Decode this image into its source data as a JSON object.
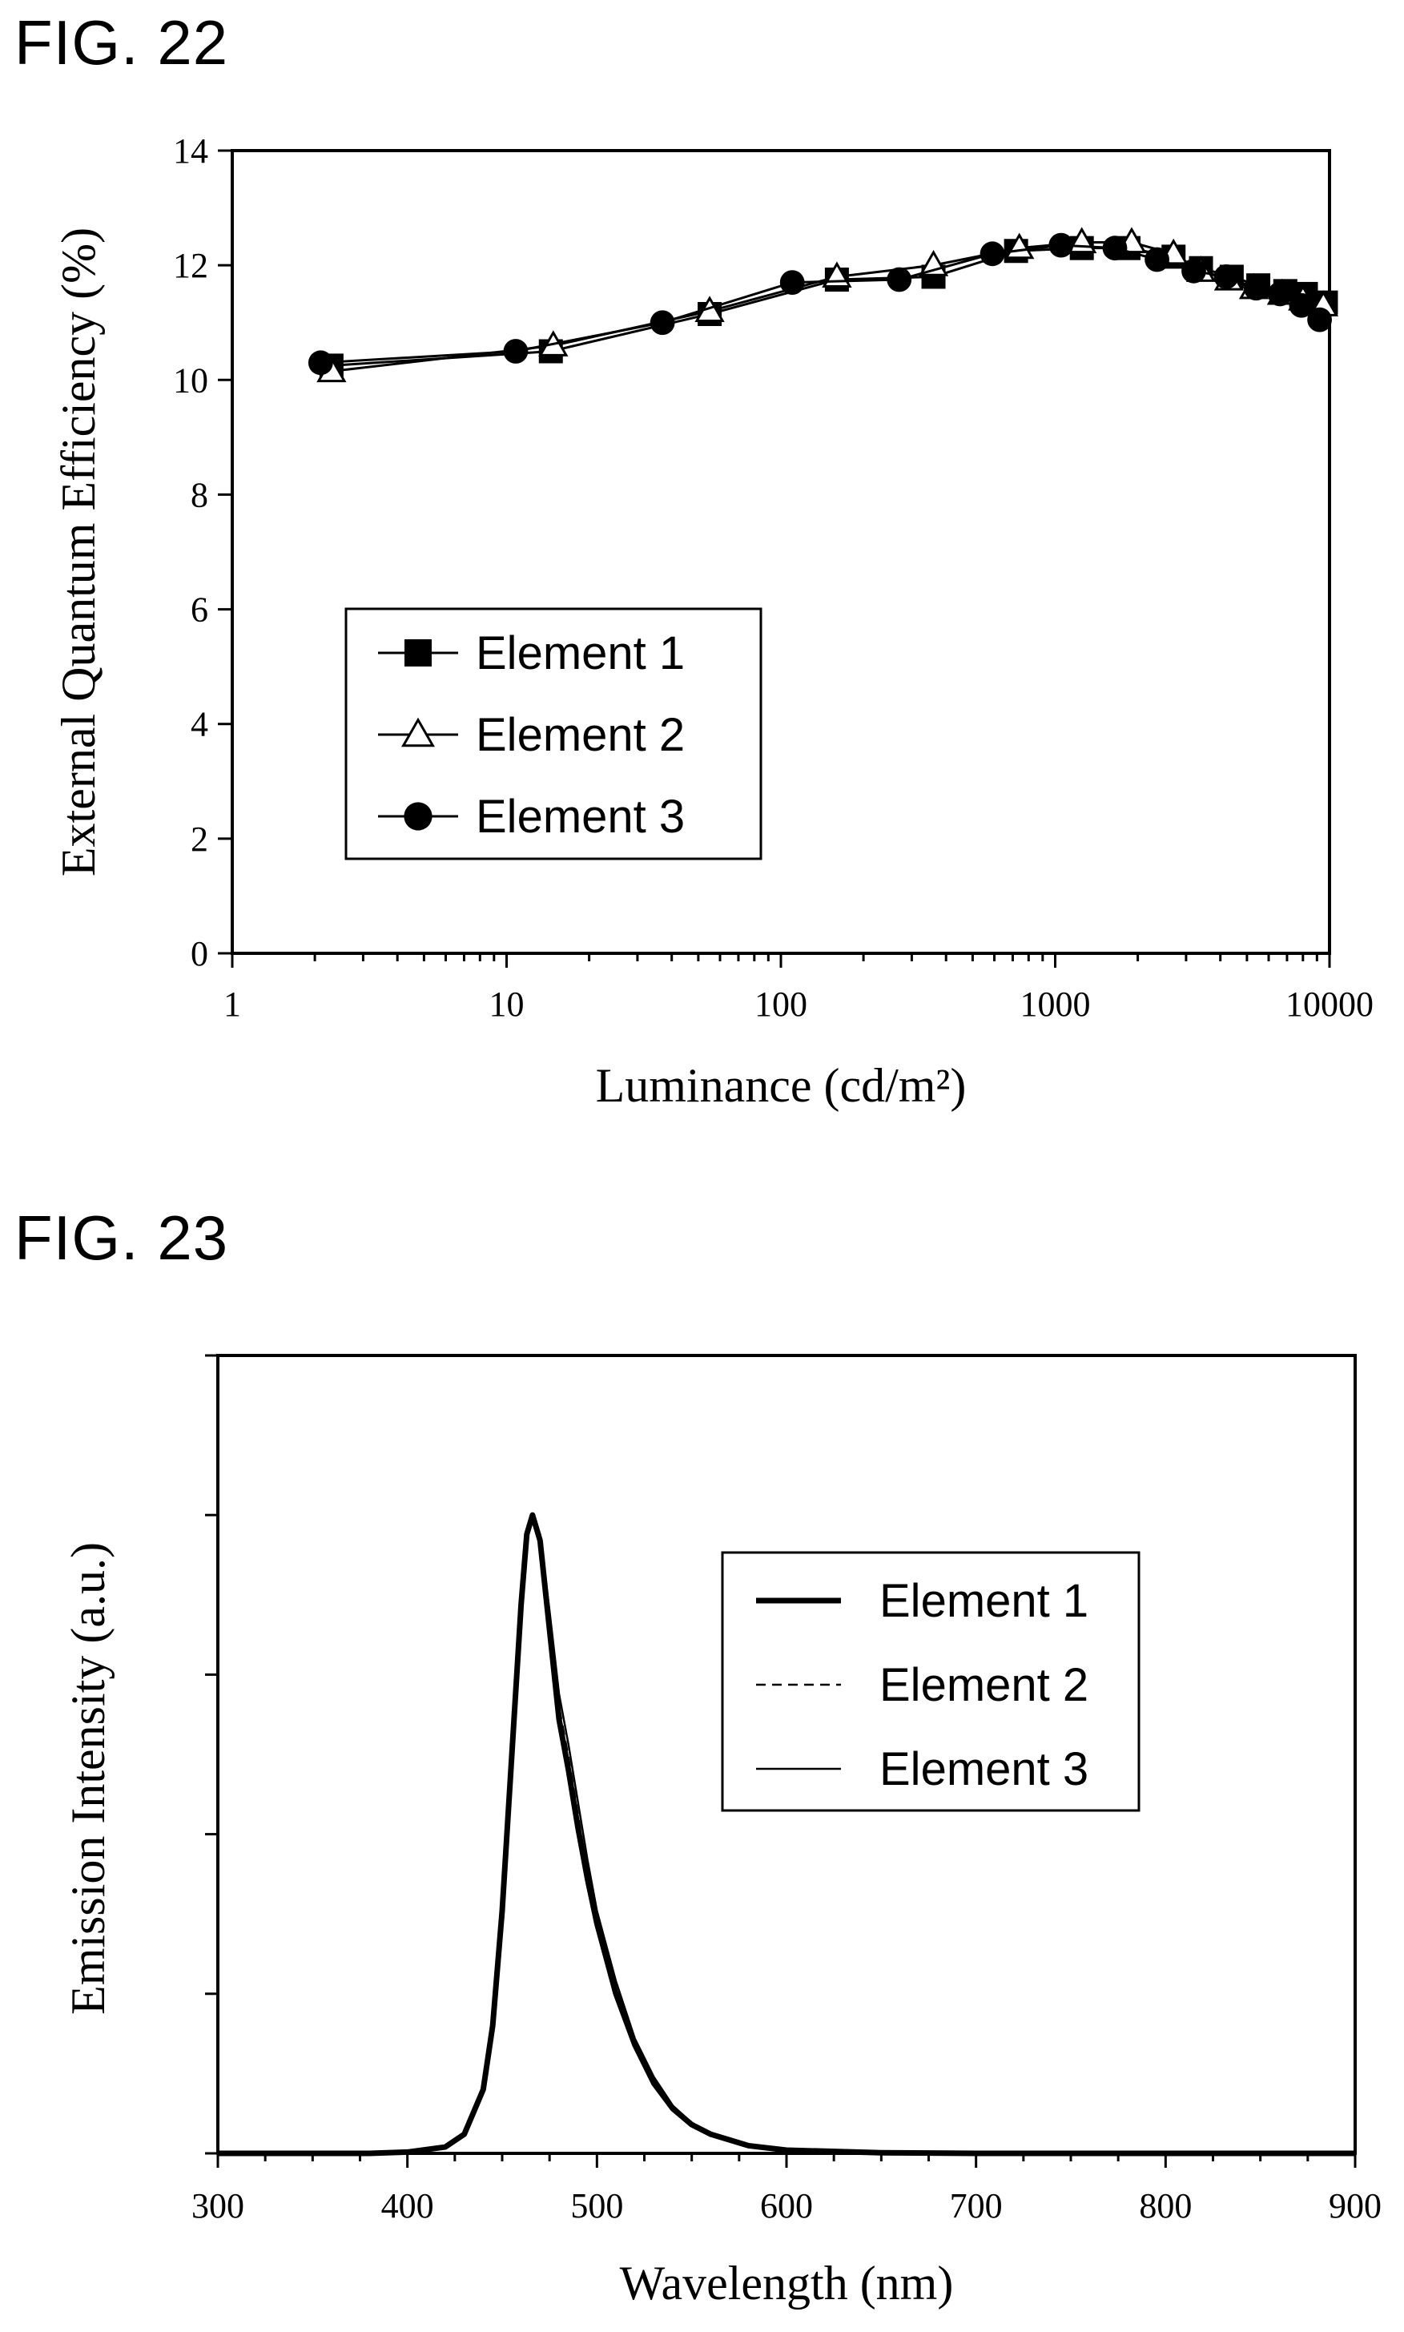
{
  "figures": [
    {
      "label": "FIG. 22"
    },
    {
      "label": "FIG. 23"
    }
  ],
  "chart_data": [
    {
      "type": "scatter",
      "title": "",
      "xlabel": "Luminance (cd/m²)",
      "ylabel": "External Quantum Efficiency (%)",
      "xscale": "log",
      "xlim": [
        1,
        10000
      ],
      "ylim": [
        0,
        14
      ],
      "xticks": [
        1,
        10,
        100,
        1000,
        10000
      ],
      "xtick_labels": [
        "1",
        "10",
        "100",
        "1000",
        "10000"
      ],
      "yticks": [
        0,
        2,
        4,
        6,
        8,
        10,
        12,
        14
      ],
      "ytick_labels": [
        "0",
        "2",
        "4",
        "6",
        "8",
        "10",
        "12",
        "14"
      ],
      "grid": false,
      "legend_position": "lower-left",
      "series": [
        {
          "name": "Element 1",
          "marker": "square-filled",
          "x": [
            2.3,
            14.5,
            55,
            160,
            360,
            720,
            1250,
            1850,
            2700,
            3400,
            4400,
            5500,
            6900,
            8200,
            9700
          ],
          "y": [
            10.25,
            10.5,
            11.15,
            11.75,
            11.8,
            12.25,
            12.3,
            12.3,
            12.15,
            11.95,
            11.8,
            11.65,
            11.55,
            11.5,
            11.35
          ]
        },
        {
          "name": "Element 2",
          "marker": "triangle-open",
          "x": [
            2.3,
            14.8,
            55,
            160,
            360,
            740,
            1250,
            1900,
            2700,
            3400,
            4300,
            5300,
            6700,
            8000,
            9500
          ],
          "y": [
            10.15,
            10.6,
            11.2,
            11.8,
            12.0,
            12.3,
            12.4,
            12.4,
            12.2,
            11.9,
            11.75,
            11.6,
            11.5,
            11.4,
            11.3
          ]
        },
        {
          "name": "Element 3",
          "marker": "circle-filled",
          "x": [
            2.1,
            10.8,
            37,
            110,
            270,
            590,
            1050,
            1650,
            2350,
            3200,
            4200,
            5400,
            6600,
            7900,
            9200
          ],
          "y": [
            10.3,
            10.5,
            11.0,
            11.7,
            11.75,
            12.2,
            12.35,
            12.3,
            12.1,
            11.9,
            11.8,
            11.6,
            11.5,
            11.3,
            11.05
          ]
        }
      ]
    },
    {
      "type": "line",
      "title": "",
      "xlabel": "Wavelength (nm)",
      "ylabel": "Emission Intensity (a.u.)",
      "xlim": [
        300,
        900
      ],
      "ylim": [
        0,
        1.25
      ],
      "xticks": [
        300,
        400,
        500,
        600,
        700,
        800,
        900
      ],
      "xtick_labels": [
        "300",
        "400",
        "500",
        "600",
        "700",
        "800",
        "900"
      ],
      "yticks": [
        0,
        0.25,
        0.5,
        0.75,
        1.0,
        1.25
      ],
      "ytick_labels": [
        "",
        "",
        "",
        "",
        "",
        ""
      ],
      "grid": false,
      "legend_position": "upper-right",
      "x": [
        300,
        380,
        400,
        420,
        430,
        440,
        445,
        450,
        455,
        460,
        463,
        466,
        470,
        475,
        480,
        485,
        490,
        495,
        500,
        510,
        520,
        530,
        540,
        550,
        560,
        580,
        600,
        650,
        700,
        800,
        900
      ],
      "series": [
        {
          "name": "Element 1",
          "style": "thick",
          "values": [
            0,
            0,
            0.002,
            0.01,
            0.03,
            0.1,
            0.2,
            0.38,
            0.62,
            0.86,
            0.97,
            1.0,
            0.96,
            0.82,
            0.68,
            0.6,
            0.51,
            0.43,
            0.36,
            0.25,
            0.17,
            0.11,
            0.07,
            0.045,
            0.03,
            0.012,
            0.005,
            0.001,
            0,
            0,
            0
          ]
        },
        {
          "name": "Element 2",
          "style": "dashed",
          "values": [
            0,
            0,
            0.002,
            0.01,
            0.03,
            0.1,
            0.2,
            0.38,
            0.62,
            0.86,
            0.97,
            1.0,
            0.965,
            0.84,
            0.7,
            0.62,
            0.53,
            0.44,
            0.37,
            0.26,
            0.175,
            0.115,
            0.072,
            0.046,
            0.03,
            0.012,
            0.005,
            0.001,
            0,
            0,
            0
          ]
        },
        {
          "name": "Element 3",
          "style": "thin",
          "values": [
            0,
            0,
            0.002,
            0.01,
            0.03,
            0.1,
            0.2,
            0.38,
            0.62,
            0.86,
            0.97,
            1.0,
            0.97,
            0.85,
            0.72,
            0.64,
            0.55,
            0.46,
            0.38,
            0.27,
            0.18,
            0.12,
            0.075,
            0.048,
            0.031,
            0.012,
            0.005,
            0.001,
            0,
            0,
            0
          ]
        }
      ]
    }
  ]
}
